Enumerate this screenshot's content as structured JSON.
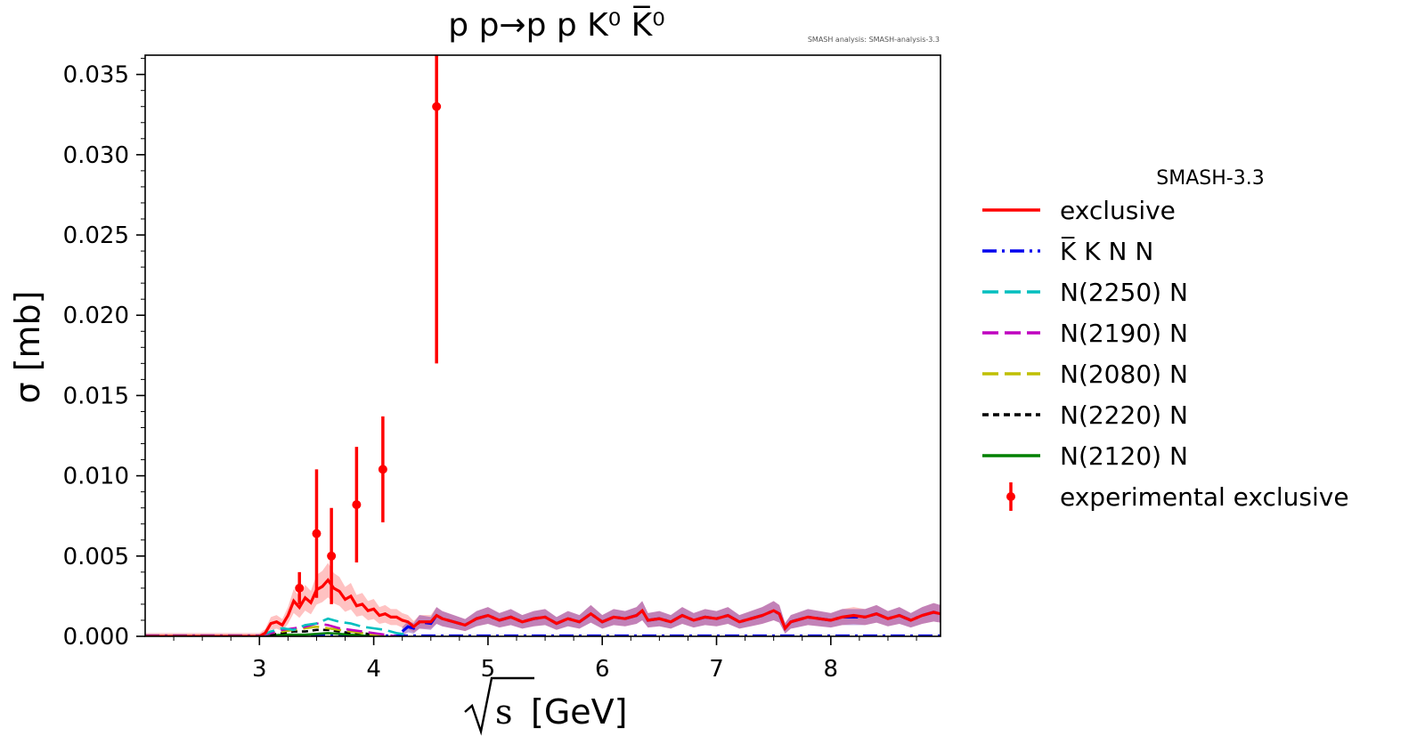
{
  "chart_data": {
    "type": "line",
    "title": "p p→p p K⁰ K̅⁰",
    "watermark": "SMASH analysis: SMASH-analysis-3.3",
    "xlabel_unit": "[GeV]",
    "xlabel_symbol": "s",
    "ylabel": "σ [mb]",
    "xlim": [
      2.0,
      8.96
    ],
    "ylim": [
      0.0,
      0.0362
    ],
    "xticks": [
      3,
      4,
      5,
      6,
      7,
      8
    ],
    "yticks": [
      0.0,
      0.005,
      0.01,
      0.015,
      0.02,
      0.025,
      0.03,
      0.035
    ],
    "ytick_labels": [
      "0.000",
      "0.005",
      "0.010",
      "0.015",
      "0.020",
      "0.025",
      "0.030",
      "0.035"
    ],
    "grid": false,
    "legend": {
      "title": "SMASH-3.3",
      "placement": "outside-right"
    },
    "series": [
      {
        "name": "exclusive",
        "color": "#ff0000",
        "style": "solid",
        "band_color": "#ff7777",
        "x": [
          2.0,
          3.0,
          3.05,
          3.1,
          3.15,
          3.2,
          3.25,
          3.3,
          3.35,
          3.4,
          3.45,
          3.5,
          3.55,
          3.6,
          3.65,
          3.7,
          3.75,
          3.8,
          3.85,
          3.9,
          3.95,
          4.0,
          4.05,
          4.1,
          4.15,
          4.2,
          4.25,
          4.3,
          4.35,
          4.4,
          4.5,
          4.55,
          4.6,
          4.7,
          4.8,
          4.9,
          5.0,
          5.1,
          5.2,
          5.3,
          5.4,
          5.5,
          5.6,
          5.7,
          5.8,
          5.9,
          6.0,
          6.1,
          6.2,
          6.3,
          6.35,
          6.4,
          6.5,
          6.6,
          6.7,
          6.8,
          6.9,
          7.0,
          7.1,
          7.2,
          7.3,
          7.4,
          7.5,
          7.55,
          7.6,
          7.65,
          7.7,
          7.8,
          7.9,
          8.0,
          8.1,
          8.2,
          8.3,
          8.4,
          8.5,
          8.6,
          8.7,
          8.8,
          8.9,
          8.96
        ],
        "y": [
          0.0,
          0.0,
          0.0002,
          0.0008,
          0.0009,
          0.0007,
          0.0013,
          0.0022,
          0.0018,
          0.0024,
          0.0021,
          0.0029,
          0.0031,
          0.0035,
          0.003,
          0.0028,
          0.0023,
          0.0025,
          0.0019,
          0.002,
          0.0016,
          0.0017,
          0.0013,
          0.0014,
          0.0012,
          0.0012,
          0.001,
          0.0009,
          0.0006,
          0.0009,
          0.0009,
          0.0013,
          0.0011,
          0.0009,
          0.0007,
          0.0011,
          0.0013,
          0.001,
          0.0012,
          0.0009,
          0.0011,
          0.0012,
          0.0008,
          0.0011,
          0.0009,
          0.0014,
          0.0009,
          0.0012,
          0.0011,
          0.0013,
          0.0016,
          0.001,
          0.0011,
          0.0009,
          0.0013,
          0.001,
          0.0012,
          0.0011,
          0.0013,
          0.0009,
          0.0011,
          0.0013,
          0.0016,
          0.0014,
          0.0005,
          0.0009,
          0.001,
          0.0012,
          0.0011,
          0.001,
          0.0012,
          0.0013,
          0.0012,
          0.0014,
          0.0011,
          0.0013,
          0.001,
          0.0013,
          0.0015,
          0.0014
        ]
      },
      {
        "name": "K̅ K N N",
        "color": "#0000ee",
        "style": "dashdot",
        "band_color": "#7733aa",
        "x": [
          4.25,
          4.3,
          4.35,
          4.4,
          4.5,
          4.55,
          4.6,
          4.7,
          4.8,
          4.9,
          5.0,
          5.1,
          5.2,
          5.3,
          5.4,
          5.5,
          5.6,
          5.7,
          5.8,
          5.9,
          6.0,
          6.1,
          6.2,
          6.3,
          6.35,
          6.4,
          6.5,
          6.6,
          6.7,
          6.8,
          6.9,
          7.0,
          7.1,
          7.2,
          7.3,
          7.4,
          7.5,
          7.55,
          7.6,
          7.65,
          7.7,
          7.8,
          7.9,
          8.0,
          8.1,
          8.2,
          8.3,
          8.4,
          8.5,
          8.6,
          8.7,
          8.8,
          8.9,
          8.96
        ],
        "y": [
          0.0003,
          0.0006,
          0.0005,
          0.0009,
          0.0008,
          0.0013,
          0.0011,
          0.0009,
          0.0007,
          0.0011,
          0.0013,
          0.001,
          0.0012,
          0.0009,
          0.0011,
          0.0012,
          0.0008,
          0.0011,
          0.0009,
          0.0014,
          0.0009,
          0.0012,
          0.0011,
          0.0013,
          0.0016,
          0.001,
          0.0011,
          0.0009,
          0.0013,
          0.001,
          0.0012,
          0.0011,
          0.0013,
          0.0009,
          0.0011,
          0.0013,
          0.0016,
          0.0014,
          0.0005,
          0.0009,
          0.001,
          0.0012,
          0.0011,
          0.001,
          0.0012,
          0.0012,
          0.0012,
          0.0014,
          0.0011,
          0.0013,
          0.001,
          0.0013,
          0.0015,
          0.0014
        ]
      },
      {
        "name": "N(2250) N",
        "color": "#00bfbf",
        "style": "dashed",
        "x": [
          3.0,
          3.1,
          3.2,
          3.3,
          3.4,
          3.5,
          3.6,
          3.7,
          3.8,
          3.9,
          4.0,
          4.1,
          4.2,
          4.3
        ],
        "y": [
          0.0,
          0.0003,
          0.0005,
          0.0004,
          0.0007,
          0.0008,
          0.0011,
          0.0009,
          0.0008,
          0.0006,
          0.0005,
          0.0004,
          0.0002,
          0.0001
        ]
      },
      {
        "name": "N(2190) N",
        "color": "#bf00bf",
        "style": "dashed",
        "x": [
          3.0,
          3.1,
          3.2,
          3.3,
          3.4,
          3.5,
          3.6,
          3.7,
          3.8,
          3.9,
          4.0,
          4.1,
          4.2
        ],
        "y": [
          0.0,
          0.0002,
          0.0004,
          0.0005,
          0.0006,
          0.0008,
          0.0007,
          0.0005,
          0.0004,
          0.0003,
          0.0002,
          0.0001,
          0.0
        ]
      },
      {
        "name": "N(2080) N",
        "color": "#bfbf00",
        "style": "dashed",
        "x": [
          3.0,
          3.1,
          3.2,
          3.3,
          3.4,
          3.5,
          3.6,
          3.7,
          3.8,
          3.9,
          4.0,
          4.1
        ],
        "y": [
          0.0,
          0.0002,
          0.0003,
          0.0004,
          0.0005,
          0.0006,
          0.0005,
          0.0004,
          0.0003,
          0.0002,
          0.0001,
          0.0
        ]
      },
      {
        "name": "N(2220) N",
        "color": "#000000",
        "style": "dotted",
        "x": [
          3.0,
          3.1,
          3.2,
          3.3,
          3.4,
          3.5,
          3.6,
          3.7,
          3.8,
          3.9,
          4.0,
          4.1
        ],
        "y": [
          0.0,
          0.0001,
          0.0002,
          0.0003,
          0.0003,
          0.0004,
          0.0004,
          0.0003,
          0.0002,
          0.0002,
          0.0001,
          0.0
        ]
      },
      {
        "name": "N(2120) N",
        "color": "#008000",
        "style": "solid",
        "x": [
          3.0,
          3.2,
          3.4,
          3.6,
          3.8,
          4.0
        ],
        "y": [
          0.0,
          0.0001,
          0.0001,
          0.0002,
          0.0001,
          0.0
        ]
      }
    ],
    "experimental": {
      "name": "experimental exclusive",
      "color": "#ff0000",
      "points": [
        {
          "x": 3.35,
          "y": 0.003,
          "yerr": 0.001
        },
        {
          "x": 3.5,
          "y": 0.0064,
          "yerr": 0.004
        },
        {
          "x": 3.63,
          "y": 0.005,
          "yerr": 0.003
        },
        {
          "x": 3.85,
          "y": 0.0082,
          "yerr": 0.0036
        },
        {
          "x": 4.08,
          "y": 0.0104,
          "yerr": 0.0033
        },
        {
          "x": 4.55,
          "y": 0.033,
          "yerr": 0.016
        }
      ]
    }
  }
}
